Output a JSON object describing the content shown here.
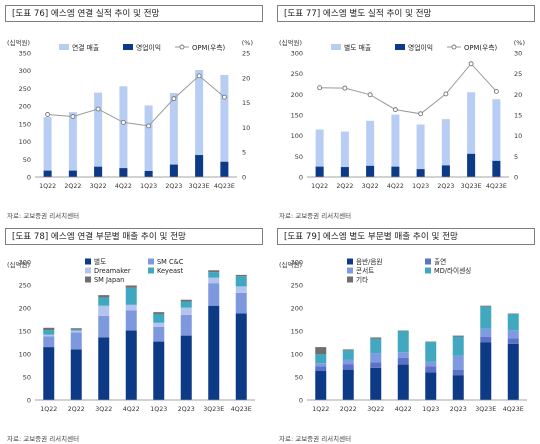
{
  "colors": {
    "light_blue": "#b7cdf3",
    "navy": "#0d3a86",
    "opm_line": "#9a9a9a",
    "seg_byeolddo": "#0d3a86",
    "seg_smcnc": "#7e98dd",
    "seg_dreamaker": "#b3c4ee",
    "seg_keyeast": "#3fa7c0",
    "seg_smjapan": "#6f6f6f",
    "seg_album": "#0d3a86",
    "seg_chulyeon": "#5c72c8",
    "seg_concert": "#7f9be0",
    "seg_md": "#42a8c0",
    "seg_gita": "#6f6f6f"
  },
  "chart_data": [
    {
      "title": "[도표 76] 에스엠 연결 실적 추이 및 전망",
      "type": "bar",
      "unit_left": "(십억원)",
      "unit_right": "(%)",
      "categories": [
        "1Q22",
        "2Q22",
        "3Q22",
        "4Q22",
        "1Q23",
        "2Q23",
        "3Q23E",
        "4Q23E"
      ],
      "series": [
        {
          "name": "연결 매출",
          "values": [
            169,
            183,
            238,
            256,
            202,
            237,
            302,
            288
          ]
        },
        {
          "name": "영업이익",
          "values": [
            18,
            18,
            29,
            25,
            17,
            35,
            62,
            43
          ]
        },
        {
          "name": "OPM(우측)",
          "values": [
            12.6,
            12.2,
            13.7,
            11.0,
            10.3,
            15.8,
            20.4,
            16.1
          ]
        }
      ],
      "ylim": [
        0,
        350
      ],
      "y_ticks": [
        0,
        50,
        100,
        150,
        200,
        250,
        300,
        350
      ],
      "y2lim": [
        0,
        25
      ],
      "y2_ticks": [
        0,
        5,
        10,
        15,
        20,
        25
      ],
      "legend": [
        "연결 매출",
        "영업이익",
        "OPM(우측)"
      ],
      "source": "자료: 교보증권 리서치센터"
    },
    {
      "title": "[도표 77] 에스엠 별도 실적 추이 및 전망",
      "type": "bar",
      "unit_left": "(십억원)",
      "unit_right": "(%)",
      "categories": [
        "1Q22",
        "2Q22",
        "3Q22",
        "4Q22",
        "1Q23",
        "2Q23",
        "3Q23E",
        "4Q23E"
      ],
      "series": [
        {
          "name": "별도 매출",
          "values": [
            115,
            110,
            136,
            151,
            127,
            140,
            205,
            188
          ]
        },
        {
          "name": "영업이익",
          "values": [
            25,
            24,
            27,
            25,
            19,
            28,
            56,
            39
          ]
        },
        {
          "name": "OPM(우측)",
          "values": [
            21.6,
            21.5,
            19.9,
            16.3,
            15.3,
            20.1,
            27.4,
            20.7
          ]
        }
      ],
      "ylim": [
        0,
        300
      ],
      "y_ticks": [
        0,
        50,
        100,
        150,
        200,
        250,
        300
      ],
      "y2lim": [
        0,
        30
      ],
      "y2_ticks": [
        0,
        5,
        10,
        15,
        20,
        25,
        30
      ],
      "legend": [
        "별도 매출",
        "영업이익",
        "OPM(우측)"
      ],
      "source": "자료: 교보증권 리서치센터"
    },
    {
      "title": "[도표 78] 에스엠 연결 부문별 매출 추이 및 전망",
      "type": "bar",
      "stacked": true,
      "unit_left": "(십억원)",
      "categories": [
        "1Q22",
        "2Q22",
        "3Q22",
        "4Q22",
        "1Q23",
        "2Q23",
        "3Q23E",
        "4Q23E"
      ],
      "series": [
        {
          "name": "별도",
          "values": [
            115,
            110,
            136,
            151,
            127,
            140,
            205,
            188
          ]
        },
        {
          "name": "SM C&C",
          "values": [
            23,
            37,
            47,
            44,
            32,
            45,
            49,
            45
          ]
        },
        {
          "name": "Dreamaker",
          "values": [
            4,
            4,
            22,
            12,
            9,
            16,
            12,
            14
          ]
        },
        {
          "name": "Keyeast",
          "values": [
            10,
            2,
            18,
            37,
            19,
            13,
            12,
            22
          ]
        },
        {
          "name": "SM Japan",
          "values": [
            5,
            3,
            5,
            5,
            4,
            4,
            4,
            3
          ]
        }
      ],
      "ylim": [
        0,
        300
      ],
      "y_ticks": [
        0,
        50,
        100,
        150,
        200,
        250,
        300
      ],
      "legend": [
        "별도",
        "SM C&C",
        "Dreamaker",
        "Keyeast",
        "SM Japan"
      ],
      "source": "자료: 교보증권 리서치센터"
    },
    {
      "title": "[도표 79] 에스엠 별도 부문별 매출 추이 및 전망",
      "type": "bar",
      "stacked": true,
      "unit_left": "(십억원)",
      "categories": [
        "1Q22",
        "2Q22",
        "3Q22",
        "4Q22",
        "1Q23",
        "2Q23",
        "3Q23E",
        "4Q23E"
      ],
      "series": [
        {
          "name": "음반/음원",
          "values": [
            63,
            66,
            70,
            77,
            60,
            54,
            125,
            122
          ]
        },
        {
          "name": "출연",
          "values": [
            10,
            12,
            12,
            15,
            13,
            12,
            12,
            12
          ]
        },
        {
          "name": "콘서트",
          "values": [
            7,
            10,
            20,
            12,
            10,
            30,
            18,
            18
          ]
        },
        {
          "name": "MD/라이센싱",
          "values": [
            20,
            20,
            31,
            46,
            43,
            42,
            48,
            35
          ]
        },
        {
          "name": "기타",
          "values": [
            15,
            2,
            3,
            1,
            1,
            2,
            2,
            1
          ]
        }
      ],
      "ylim": [
        0,
        300
      ],
      "y_ticks": [
        0,
        50,
        100,
        150,
        200,
        250,
        300
      ],
      "legend": [
        "음반/음원",
        "출연",
        "콘서트",
        "MD/라이센싱",
        "기타"
      ],
      "source": "자료: 교보증권 리서치센터"
    }
  ]
}
